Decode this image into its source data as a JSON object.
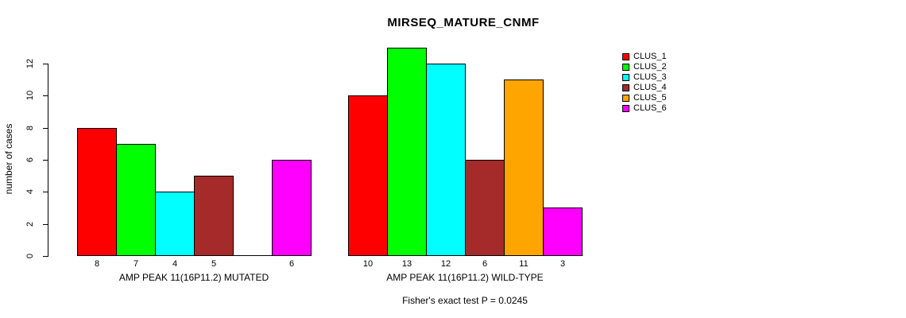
{
  "chart_data": {
    "type": "bar",
    "title": "MIRSEQ_MATURE_CNMF",
    "xlabel": "",
    "ylabel": "number of cases",
    "ylim": [
      0,
      13
    ],
    "yticks": [
      0,
      2,
      4,
      6,
      8,
      10,
      12
    ],
    "grid": false,
    "legend_position": "right",
    "legend": [
      {
        "label": "CLUS_1",
        "color": "#FF0000"
      },
      {
        "label": "CLUS_2",
        "color": "#00FF00"
      },
      {
        "label": "CLUS_3",
        "color": "#00FFFF"
      },
      {
        "label": "CLUS_4",
        "color": "#A52A2A"
      },
      {
        "label": "CLUS_5",
        "color": "#FFA500"
      },
      {
        "label": "CLUS_6",
        "color": "#FF00FF"
      }
    ],
    "groups": [
      {
        "label": "AMP PEAK 11(16P11.2) MUTATED",
        "values": [
          8,
          7,
          4,
          5,
          0,
          6
        ],
        "bar_labels": [
          "8",
          "7",
          "4",
          "5",
          "",
          "6"
        ]
      },
      {
        "label": "AMP PEAK 11(16P11.2) WILD-TYPE",
        "values": [
          10,
          13,
          12,
          6,
          11,
          3
        ],
        "bar_labels": [
          "10",
          "13",
          "12",
          "6",
          "11",
          "3"
        ]
      }
    ],
    "annotation": "Fisher's exact test P = 0.0245"
  }
}
